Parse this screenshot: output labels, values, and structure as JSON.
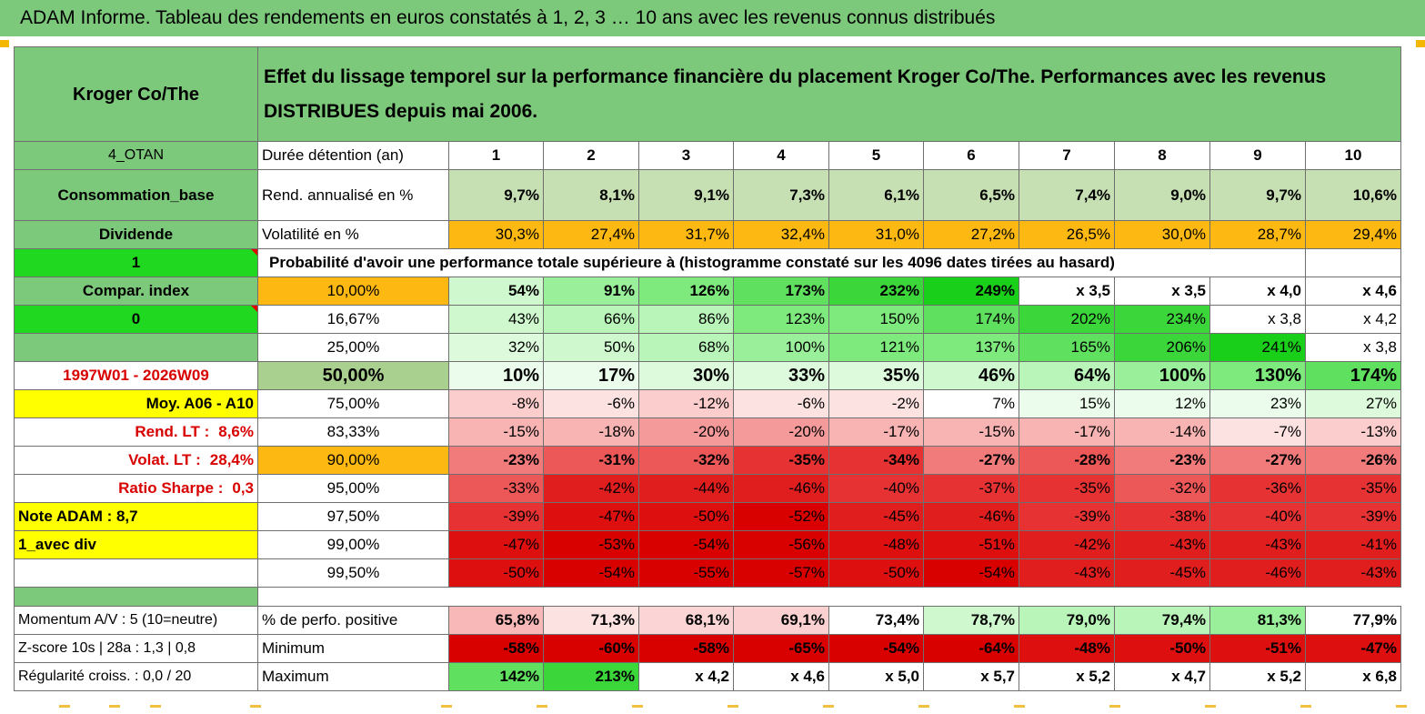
{
  "title": "ADAM Informe. Tableau des rendements en euros constatés à 1, 2, 3 … 10 ans avec les revenus connus distribués",
  "instrument": "Kroger Co/The",
  "description": "Effet du lissage temporel sur la performance financière du placement Kroger Co/The. Performances avec les revenus DISTRIBUES depuis mai 2006.",
  "left_panel": {
    "code": "4_OTAN",
    "category": "Consommation_base",
    "dividend_label": "Dividende",
    "flag1": "1",
    "compar_index": "Compar. index",
    "flag0": "0",
    "period": "1997W01 - 2026W09",
    "moy": "Moy. A06 - A10",
    "rend_lt_label": "Rend. LT :",
    "rend_lt_value": "8,6%",
    "volat_lt_label": "Volat. LT :",
    "volat_lt_value": "28,4%",
    "sharpe_label": "Ratio Sharpe :",
    "sharpe_value": "0,3",
    "note": "Note ADAM : 8,7",
    "div_mode": "1_avec div",
    "momentum": "Momentum A/V : 5 (10=neutre)",
    "zscore": "Z-score 10s | 28a : 1,3 | 0,8",
    "regularite": "Régularité croiss. : 0,0 / 20"
  },
  "duration_label": "Durée détention (an)",
  "years": [
    "1",
    "2",
    "3",
    "4",
    "5",
    "6",
    "7",
    "8",
    "9",
    "10"
  ],
  "rend_label": "Rend. annualisé en %",
  "rend": [
    "9,7%",
    "8,1%",
    "9,1%",
    "7,3%",
    "6,1%",
    "6,5%",
    "7,4%",
    "9,0%",
    "9,7%",
    "10,6%"
  ],
  "vol_label": "Volatilité en %",
  "vol": [
    "30,3%",
    "27,4%",
    "31,7%",
    "32,4%",
    "31,0%",
    "27,2%",
    "26,5%",
    "30,0%",
    "28,7%",
    "29,4%"
  ],
  "prob_heading": "Probabilité d'avoir une performance totale supérieure à (histogramme constaté sur les 4096 dates tirées au hasard)",
  "prob_rows": [
    {
      "p": "10,00%",
      "vals": [
        "54%",
        "91%",
        "126%",
        "173%",
        "232%",
        "249%",
        "x 3,5",
        "x 3,5",
        "x 4,0",
        "x 4,6"
      ]
    },
    {
      "p": "16,67%",
      "vals": [
        "43%",
        "66%",
        "86%",
        "123%",
        "150%",
        "174%",
        "202%",
        "234%",
        "x 3,8",
        "x 4,2"
      ]
    },
    {
      "p": "25,00%",
      "vals": [
        "32%",
        "50%",
        "68%",
        "100%",
        "121%",
        "137%",
        "165%",
        "206%",
        "241%",
        "x 3,8"
      ]
    },
    {
      "p": "50,00%",
      "vals": [
        "10%",
        "17%",
        "30%",
        "33%",
        "35%",
        "46%",
        "64%",
        "100%",
        "130%",
        "174%"
      ]
    },
    {
      "p": "75,00%",
      "vals": [
        "-8%",
        "-6%",
        "-12%",
        "-6%",
        "-2%",
        "7%",
        "15%",
        "12%",
        "23%",
        "27%"
      ]
    },
    {
      "p": "83,33%",
      "vals": [
        "-15%",
        "-18%",
        "-20%",
        "-20%",
        "-17%",
        "-15%",
        "-17%",
        "-14%",
        "-7%",
        "-13%"
      ]
    },
    {
      "p": "90,00%",
      "vals": [
        "-23%",
        "-31%",
        "-32%",
        "-35%",
        "-34%",
        "-27%",
        "-28%",
        "-23%",
        "-27%",
        "-26%"
      ]
    },
    {
      "p": "95,00%",
      "vals": [
        "-33%",
        "-42%",
        "-44%",
        "-46%",
        "-40%",
        "-37%",
        "-35%",
        "-32%",
        "-36%",
        "-35%"
      ]
    },
    {
      "p": "97,50%",
      "vals": [
        "-39%",
        "-47%",
        "-50%",
        "-52%",
        "-45%",
        "-46%",
        "-39%",
        "-38%",
        "-40%",
        "-39%"
      ]
    },
    {
      "p": "99,00%",
      "vals": [
        "-47%",
        "-53%",
        "-54%",
        "-56%",
        "-48%",
        "-51%",
        "-42%",
        "-43%",
        "-43%",
        "-41%"
      ]
    },
    {
      "p": "99,50%",
      "vals": [
        "-50%",
        "-54%",
        "-55%",
        "-57%",
        "-50%",
        "-54%",
        "-43%",
        "-45%",
        "-46%",
        "-43%"
      ]
    }
  ],
  "pos_label": "% de perfo. positive",
  "pos": [
    "65,8%",
    "71,3%",
    "68,1%",
    "69,1%",
    "73,4%",
    "78,7%",
    "79,0%",
    "79,4%",
    "81,3%",
    "77,9%"
  ],
  "min_label": "Minimum",
  "min": [
    "-58%",
    "-60%",
    "-58%",
    "-65%",
    "-54%",
    "-64%",
    "-48%",
    "-50%",
    "-51%",
    "-47%"
  ],
  "max_label": "Maximum",
  "max": [
    "142%",
    "213%",
    "x 4,2",
    "x 4,6",
    "x 5,0",
    "x 5,7",
    "x 5,2",
    "x 4,7",
    "x 5,2",
    "x 6,8"
  ],
  "colors": {
    "header_green": "#7dc97b",
    "bright_green": "#1fd81f",
    "orange": "#fdb812",
    "yellow": "#ffff00",
    "red_text": "#d80000",
    "rend_bg": "#c6e0b4",
    "median_left": "#a9d08e"
  }
}
